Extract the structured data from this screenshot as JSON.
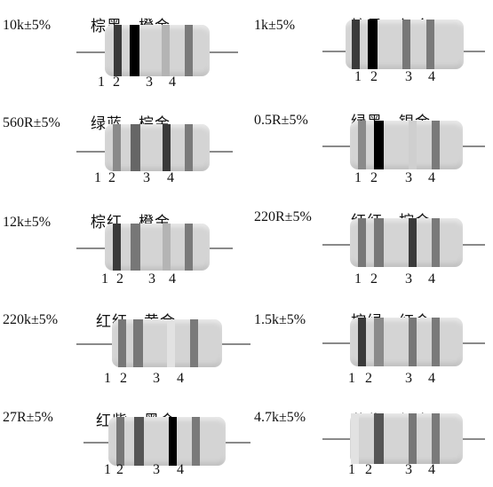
{
  "resistors": [
    {
      "value": "10k±5%",
      "colors": "棕黑　橙金",
      "numbers": [
        "1",
        "2",
        "3",
        "4"
      ],
      "bands": [
        "#3a3a3a",
        "#000000",
        "#b4b4b4",
        "#7a7a7a"
      ]
    },
    {
      "value": "1k±5%",
      "colors": "棕黑　红金",
      "numbers": [
        "1",
        "2",
        "3",
        "4"
      ],
      "bands": [
        "#3a3a3a",
        "#000000",
        "#777777",
        "#7a7a7a"
      ]
    },
    {
      "value": "560R±5%",
      "colors": "绿蓝　棕金",
      "numbers": [
        "1",
        "2",
        "3",
        "4"
      ],
      "bands": [
        "#8a8a8a",
        "#666666",
        "#3a3a3a",
        "#7a7a7a"
      ]
    },
    {
      "value": "0.5R±5%",
      "colors": "绿黑　银金",
      "numbers": [
        "1",
        "2",
        "3",
        "4"
      ],
      "bands": [
        "#8a8a8a",
        "#000000",
        "#cfcfcf",
        "#7a7a7a"
      ]
    },
    {
      "value": "12k±5%",
      "colors": "棕红　橙金",
      "numbers": [
        "1",
        "2",
        "3",
        "4"
      ],
      "bands": [
        "#3a3a3a",
        "#777777",
        "#b4b4b4",
        "#7a7a7a"
      ]
    },
    {
      "value": "220R±5%",
      "colors": "红红　棕金",
      "numbers": [
        "1",
        "2",
        "3",
        "4"
      ],
      "bands": [
        "#777777",
        "#777777",
        "#3a3a3a",
        "#7a7a7a"
      ]
    },
    {
      "value": "220k±5%",
      "colors": "红红　黄金",
      "numbers": [
        "1",
        "2",
        "3",
        "4"
      ],
      "bands": [
        "#777777",
        "#777777",
        "#e2e2e2",
        "#7a7a7a"
      ]
    },
    {
      "value": "1.5k±5%",
      "colors": "棕绿　红金",
      "numbers": [
        "1",
        "2",
        "3",
        "4"
      ],
      "bands": [
        "#3a3a3a",
        "#8a8a8a",
        "#777777",
        "#7a7a7a"
      ]
    },
    {
      "value": "27R±5%",
      "colors": "红紫　黑金",
      "numbers": [
        "1",
        "2",
        "3",
        "4"
      ],
      "bands": [
        "#777777",
        "#555555",
        "#000000",
        "#7a7a7a"
      ]
    },
    {
      "value": "4.7k±5%",
      "colors": "黄紫　红金",
      "numbers": [
        "1",
        "2",
        "3",
        "4"
      ],
      "bands": [
        "#e2e2e2",
        "#555555",
        "#777777",
        "#7a7a7a"
      ]
    }
  ]
}
